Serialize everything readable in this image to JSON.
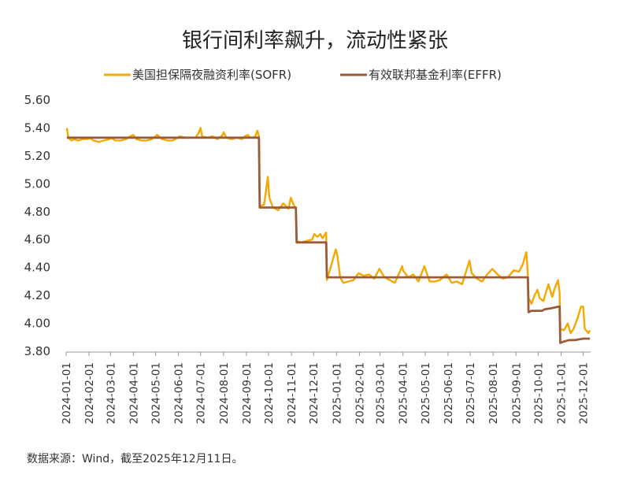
{
  "chart_data": {
    "type": "line",
    "title": "银行间利率飙升，流动性紧张",
    "source": "数据来源：Wind，截至2025年12月11日。",
    "ylim": [
      3.8,
      5.6
    ],
    "yticks": [
      "5.60",
      "5.40",
      "5.20",
      "5.00",
      "4.80",
      "4.60",
      "4.40",
      "4.20",
      "4.00",
      "3.80"
    ],
    "x_range": [
      "2024-01-01",
      "2025-12-11"
    ],
    "xticks": [
      "2024-01-01",
      "2024-02-01",
      "2024-03-01",
      "2024-04-01",
      "2024-05-01",
      "2024-06-01",
      "2024-07-01",
      "2024-08-01",
      "2024-09-01",
      "2024-10-01",
      "2024-11-01",
      "2024-12-01",
      "2025-01-01",
      "2025-02-01",
      "2025-03-01",
      "2025-04-01",
      "2025-05-01",
      "2025-06-01",
      "2025-07-01",
      "2025-08-01",
      "2025-09-01",
      "2025-10-01",
      "2025-11-01",
      "2025-12-01"
    ],
    "grid": false,
    "legend_position": "top",
    "series": [
      {
        "name": "美国担保隔夜融资利率(SOFR)",
        "color": "#F5A800",
        "points": [
          [
            "2024-01-02",
            5.4
          ],
          [
            "2024-01-04",
            5.33
          ],
          [
            "2024-01-08",
            5.31
          ],
          [
            "2024-01-12",
            5.32
          ],
          [
            "2024-01-17",
            5.31
          ],
          [
            "2024-01-24",
            5.32
          ],
          [
            "2024-01-31",
            5.32
          ],
          [
            "2024-02-01",
            5.33
          ],
          [
            "2024-02-07",
            5.31
          ],
          [
            "2024-02-14",
            5.3
          ],
          [
            "2024-02-21",
            5.31
          ],
          [
            "2024-02-29",
            5.32
          ],
          [
            "2024-03-01",
            5.33
          ],
          [
            "2024-03-08",
            5.31
          ],
          [
            "2024-03-15",
            5.31
          ],
          [
            "2024-03-22",
            5.32
          ],
          [
            "2024-03-28",
            5.34
          ],
          [
            "2024-04-01",
            5.35
          ],
          [
            "2024-04-05",
            5.32
          ],
          [
            "2024-04-12",
            5.31
          ],
          [
            "2024-04-19",
            5.31
          ],
          [
            "2024-04-26",
            5.32
          ],
          [
            "2024-05-01",
            5.34
          ],
          [
            "2024-05-03",
            5.35
          ],
          [
            "2024-05-10",
            5.32
          ],
          [
            "2024-05-17",
            5.31
          ],
          [
            "2024-05-24",
            5.31
          ],
          [
            "2024-05-31",
            5.33
          ],
          [
            "2024-06-03",
            5.34
          ],
          [
            "2024-06-10",
            5.33
          ],
          [
            "2024-06-17",
            5.33
          ],
          [
            "2024-06-24",
            5.33
          ],
          [
            "2024-06-28",
            5.36
          ],
          [
            "2024-07-01",
            5.4
          ],
          [
            "2024-07-03",
            5.34
          ],
          [
            "2024-07-10",
            5.33
          ],
          [
            "2024-07-17",
            5.34
          ],
          [
            "2024-07-24",
            5.32
          ],
          [
            "2024-07-31",
            5.35
          ],
          [
            "2024-08-01",
            5.37
          ],
          [
            "2024-08-05",
            5.33
          ],
          [
            "2024-08-12",
            5.32
          ],
          [
            "2024-08-19",
            5.33
          ],
          [
            "2024-08-26",
            5.32
          ],
          [
            "2024-08-30",
            5.34
          ],
          [
            "2024-09-03",
            5.35
          ],
          [
            "2024-09-06",
            5.33
          ],
          [
            "2024-09-10",
            5.33
          ],
          [
            "2024-09-13",
            5.34
          ],
          [
            "2024-09-16",
            5.38
          ],
          [
            "2024-09-18",
            5.34
          ],
          [
            "2024-09-19",
            4.84
          ],
          [
            "2024-09-25",
            4.85
          ],
          [
            "2024-09-30",
            5.05
          ],
          [
            "2024-10-02",
            4.9
          ],
          [
            "2024-10-07",
            4.83
          ],
          [
            "2024-10-14",
            4.81
          ],
          [
            "2024-10-21",
            4.86
          ],
          [
            "2024-10-28",
            4.82
          ],
          [
            "2024-10-31",
            4.9
          ],
          [
            "2024-11-04",
            4.85
          ],
          [
            "2024-11-07",
            4.82
          ],
          [
            "2024-11-08",
            4.59
          ],
          [
            "2024-11-14",
            4.58
          ],
          [
            "2024-11-21",
            4.59
          ],
          [
            "2024-11-29",
            4.6
          ],
          [
            "2024-12-02",
            4.64
          ],
          [
            "2024-12-06",
            4.62
          ],
          [
            "2024-12-10",
            4.64
          ],
          [
            "2024-12-13",
            4.61
          ],
          [
            "2024-12-18",
            4.65
          ],
          [
            "2024-12-19",
            4.31
          ],
          [
            "2024-12-24",
            4.4
          ],
          [
            "2024-12-31",
            4.53
          ],
          [
            "2025-01-02",
            4.49
          ],
          [
            "2025-01-06",
            4.33
          ],
          [
            "2025-01-10",
            4.29
          ],
          [
            "2025-01-17",
            4.3
          ],
          [
            "2025-01-24",
            4.31
          ],
          [
            "2025-01-31",
            4.36
          ],
          [
            "2025-02-07",
            4.34
          ],
          [
            "2025-02-14",
            4.35
          ],
          [
            "2025-02-21",
            4.32
          ],
          [
            "2025-02-28",
            4.39
          ],
          [
            "2025-03-07",
            4.33
          ],
          [
            "2025-03-14",
            4.31
          ],
          [
            "2025-03-21",
            4.29
          ],
          [
            "2025-03-31",
            4.41
          ],
          [
            "2025-04-01",
            4.38
          ],
          [
            "2025-04-08",
            4.33
          ],
          [
            "2025-04-15",
            4.35
          ],
          [
            "2025-04-22",
            4.3
          ],
          [
            "2025-04-30",
            4.41
          ],
          [
            "2025-05-07",
            4.3
          ],
          [
            "2025-05-14",
            4.3
          ],
          [
            "2025-05-21",
            4.31
          ],
          [
            "2025-05-30",
            4.35
          ],
          [
            "2025-06-06",
            4.29
          ],
          [
            "2025-06-13",
            4.3
          ],
          [
            "2025-06-20",
            4.28
          ],
          [
            "2025-06-30",
            4.45
          ],
          [
            "2025-07-03",
            4.36
          ],
          [
            "2025-07-10",
            4.32
          ],
          [
            "2025-07-17",
            4.3
          ],
          [
            "2025-07-24",
            4.35
          ],
          [
            "2025-07-31",
            4.39
          ],
          [
            "2025-08-07",
            4.35
          ],
          [
            "2025-08-14",
            4.32
          ],
          [
            "2025-08-21",
            4.33
          ],
          [
            "2025-08-29",
            4.38
          ],
          [
            "2025-09-05",
            4.37
          ],
          [
            "2025-09-10",
            4.42
          ],
          [
            "2025-09-15",
            4.51
          ],
          [
            "2025-09-17",
            4.35
          ],
          [
            "2025-09-18",
            4.18
          ],
          [
            "2025-09-22",
            4.14
          ],
          [
            "2025-09-26",
            4.2
          ],
          [
            "2025-09-30",
            4.24
          ],
          [
            "2025-10-03",
            4.18
          ],
          [
            "2025-10-08",
            4.16
          ],
          [
            "2025-10-15",
            4.28
          ],
          [
            "2025-10-20",
            4.19
          ],
          [
            "2025-10-24",
            4.26
          ],
          [
            "2025-10-28",
            4.31
          ],
          [
            "2025-10-30",
            4.22
          ],
          [
            "2025-10-31",
            3.96
          ],
          [
            "2025-11-05",
            3.95
          ],
          [
            "2025-11-10",
            4.0
          ],
          [
            "2025-11-14",
            3.93
          ],
          [
            "2025-11-18",
            3.96
          ],
          [
            "2025-11-24",
            4.05
          ],
          [
            "2025-11-28",
            4.12
          ],
          [
            "2025-12-01",
            4.12
          ],
          [
            "2025-12-03",
            3.96
          ],
          [
            "2025-12-08",
            3.93
          ],
          [
            "2025-12-10",
            3.95
          ]
        ]
      },
      {
        "name": "有效联邦基金利率(EFFR)",
        "color": "#9B5A3A",
        "points": [
          [
            "2024-01-02",
            5.33
          ],
          [
            "2024-09-18",
            5.33
          ],
          [
            "2024-09-19",
            4.83
          ],
          [
            "2024-11-07",
            4.83
          ],
          [
            "2024-11-08",
            4.58
          ],
          [
            "2024-12-18",
            4.58
          ],
          [
            "2024-12-19",
            4.33
          ],
          [
            "2025-09-17",
            4.33
          ],
          [
            "2025-09-18",
            4.08
          ],
          [
            "2025-09-22",
            4.09
          ],
          [
            "2025-10-06",
            4.09
          ],
          [
            "2025-10-10",
            4.1
          ],
          [
            "2025-10-20",
            4.11
          ],
          [
            "2025-10-29",
            4.12
          ],
          [
            "2025-10-30",
            4.12
          ],
          [
            "2025-10-31",
            3.86
          ],
          [
            "2025-11-05",
            3.87
          ],
          [
            "2025-11-12",
            3.88
          ],
          [
            "2025-11-20",
            3.88
          ],
          [
            "2025-12-01",
            3.89
          ],
          [
            "2025-12-10",
            3.89
          ]
        ]
      }
    ]
  }
}
